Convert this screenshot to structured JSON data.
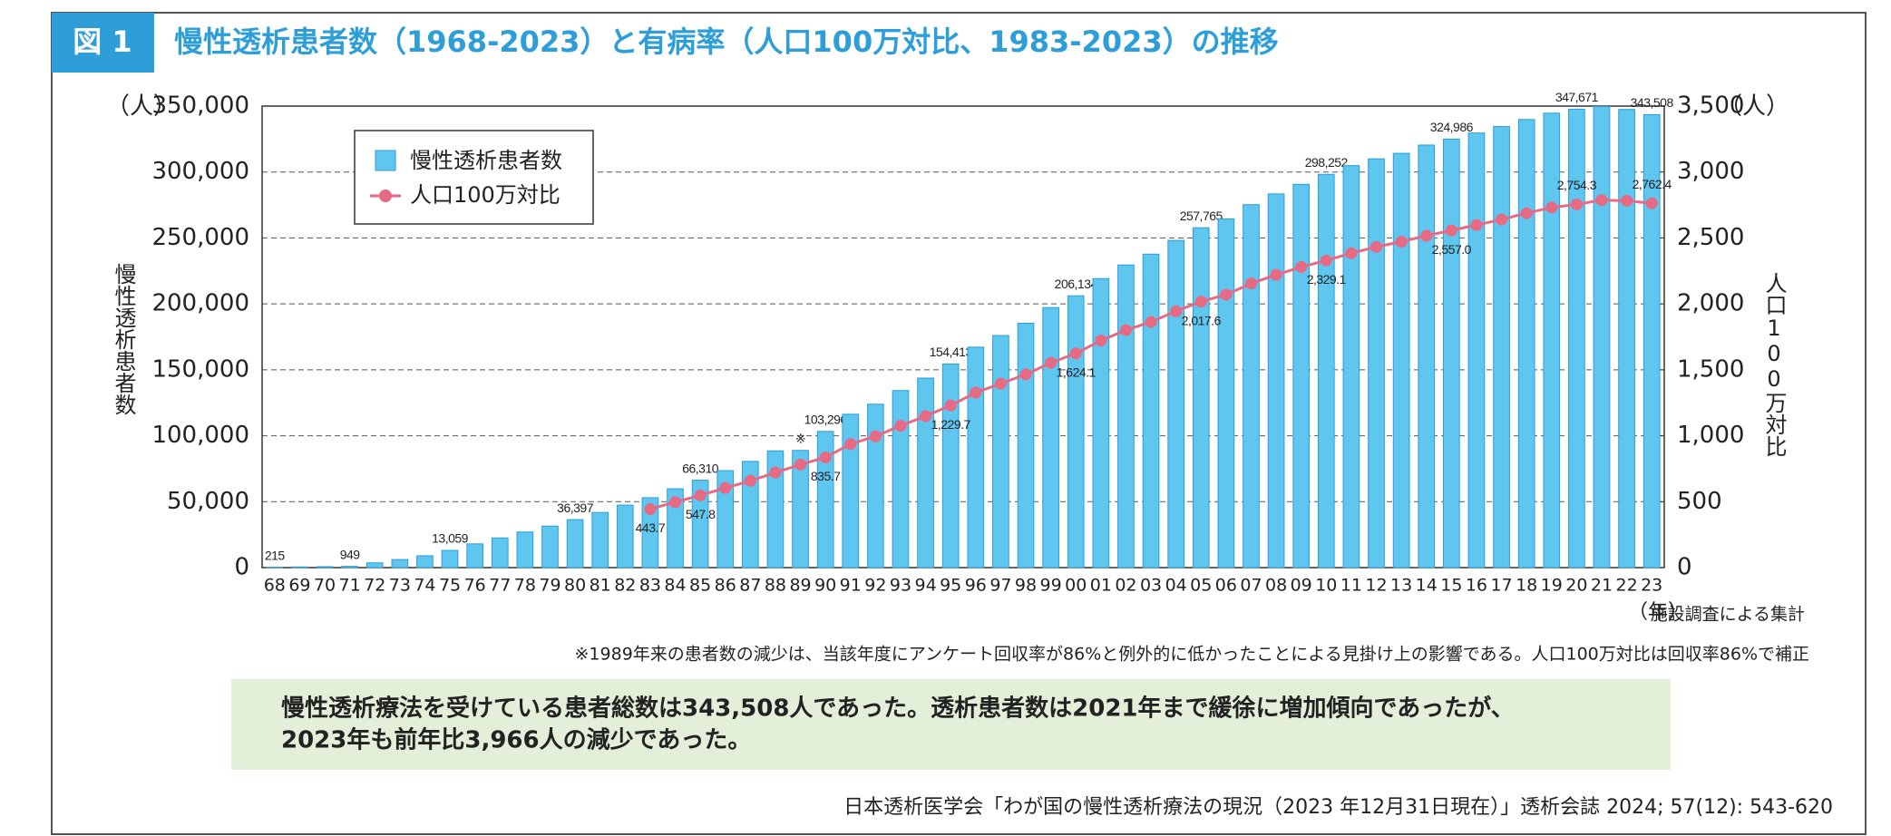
{
  "figure_label": "図 1",
  "chart_data": {
    "type": "bar_line",
    "title": "慢性透析患者数（1968-2023）と有病率（人口100万対比、1983-2023）の推移",
    "y_unit": "（人）",
    "y2_unit": "（人）",
    "x_unit": "（年）",
    "ylabel": "慢性透析患者数",
    "y2label": "人口100万対比",
    "source_note": "施設調査による集計",
    "annotation": "※",
    "categories": [
      "68",
      "69",
      "70",
      "71",
      "72",
      "73",
      "74",
      "75",
      "76",
      "77",
      "78",
      "79",
      "80",
      "81",
      "82",
      "83",
      "84",
      "85",
      "86",
      "87",
      "88",
      "89",
      "90",
      "91",
      "92",
      "93",
      "94",
      "95",
      "96",
      "97",
      "98",
      "99",
      "00",
      "01",
      "02",
      "03",
      "04",
      "05",
      "06",
      "07",
      "08",
      "09",
      "10",
      "11",
      "12",
      "13",
      "14",
      "15",
      "16",
      "17",
      "18",
      "19",
      "20",
      "21",
      "22",
      "23"
    ],
    "series": [
      {
        "name": "慢性透析患者数",
        "color": "#5ec6ef",
        "values": [
          215,
          500,
          700,
          949,
          3600,
          6100,
          9000,
          13059,
          18000,
          22500,
          27000,
          31500,
          36397,
          41800,
          47400,
          53000,
          59800,
          66310,
          73537,
          80553,
          88534,
          88880,
          103296,
          116303,
          123926,
          134298,
          143709,
          154413,
          167192,
          175988,
          185322,
          197213,
          206134,
          219183,
          229538,
          237710,
          248166,
          257765,
          264473,
          275242,
          283421,
          290661,
          298252,
          304856,
          310007,
          314180,
          320448,
          324986,
          329609,
          334505,
          339841,
          344640,
          347671,
          349700,
          347474,
          343508
        ],
        "value_labels": [
          "215",
          null,
          null,
          "949",
          null,
          null,
          null,
          "13,059",
          null,
          null,
          null,
          null,
          "36,397",
          null,
          null,
          null,
          null,
          "66,310",
          null,
          null,
          null,
          null,
          "103,296",
          null,
          null,
          null,
          null,
          "154,413",
          null,
          null,
          null,
          null,
          "206,134",
          null,
          null,
          null,
          null,
          "257,765",
          null,
          null,
          null,
          null,
          "298,252",
          null,
          null,
          null,
          null,
          "324,986",
          null,
          null,
          null,
          null,
          "347,671",
          null,
          null,
          "343,508"
        ]
      },
      {
        "name": "人口100万対比",
        "color": "#e66a84",
        "axis": "y2",
        "values": [
          null,
          null,
          null,
          null,
          null,
          null,
          null,
          null,
          null,
          null,
          null,
          null,
          null,
          null,
          null,
          443.7,
          497,
          547.8,
          604,
          658,
          721,
          782,
          835.7,
          937,
          996,
          1076,
          1149,
          1229.7,
          1327,
          1395,
          1465,
          1553,
          1624.1,
          1722,
          1801,
          1863,
          1944,
          2017.6,
          2070,
          2155,
          2220,
          2280,
          2329.1,
          2385,
          2432,
          2472,
          2517,
          2557.0,
          2598,
          2640,
          2688,
          2731,
          2754.3,
          2787,
          2782,
          2762.4
        ],
        "value_labels": [
          null,
          null,
          null,
          null,
          null,
          null,
          null,
          null,
          null,
          null,
          null,
          null,
          null,
          null,
          null,
          "443.7",
          null,
          "547.8",
          null,
          null,
          null,
          null,
          "835.7",
          null,
          null,
          null,
          null,
          "1,229.7",
          null,
          null,
          null,
          null,
          "1,624.1",
          null,
          null,
          null,
          null,
          "2,017.6",
          null,
          null,
          null,
          null,
          "2,329.1",
          null,
          null,
          null,
          null,
          "2,557.0",
          null,
          null,
          null,
          null,
          "2,754.3",
          null,
          null,
          "2,762.4"
        ]
      }
    ],
    "ylim": [
      0,
      350000
    ],
    "yticks": [
      0,
      {
        "value": 50000,
        "label": "50,000"
      },
      {
        "value": 100000,
        "label": "100,000"
      },
      {
        "value": 150000,
        "label": "150,000"
      },
      {
        "value": 200000,
        "label": "200,000"
      },
      {
        "value": 250000,
        "label": "250,000"
      },
      {
        "value": 300000,
        "label": "300,000"
      },
      {
        "value": 350000,
        "label": "350,000"
      }
    ],
    "y2lim": [
      0,
      3500
    ],
    "y2ticks": [
      0,
      500,
      {
        "value": 1000,
        "label": "1,000"
      },
      {
        "value": 1500,
        "label": "1,500"
      },
      {
        "value": 2000,
        "label": "2,000"
      },
      {
        "value": 2500,
        "label": "2,500"
      },
      {
        "value": 3000,
        "label": "3,000"
      },
      {
        "value": 3500,
        "label": "3,500"
      }
    ],
    "grid": true
  },
  "footnote": "※1989年来の患者数の減少は、当該年度にアンケート回収率が86%と例外的に低かったことによる見掛け上の影響である。人口100万対比は回収率86%で補正",
  "summary": [
    "慢性透析療法を受けている患者総数は343,508人であった。透析患者数は2021年まで緩徐に増加傾向であったが、",
    "2023年も前年比3,966人の減少であった。"
  ],
  "citation": "日本透析医学会「わが国の慢性透析療法の現況（2023 年12月31日現在）」透析会誌 2024; 57(12): 543-620"
}
